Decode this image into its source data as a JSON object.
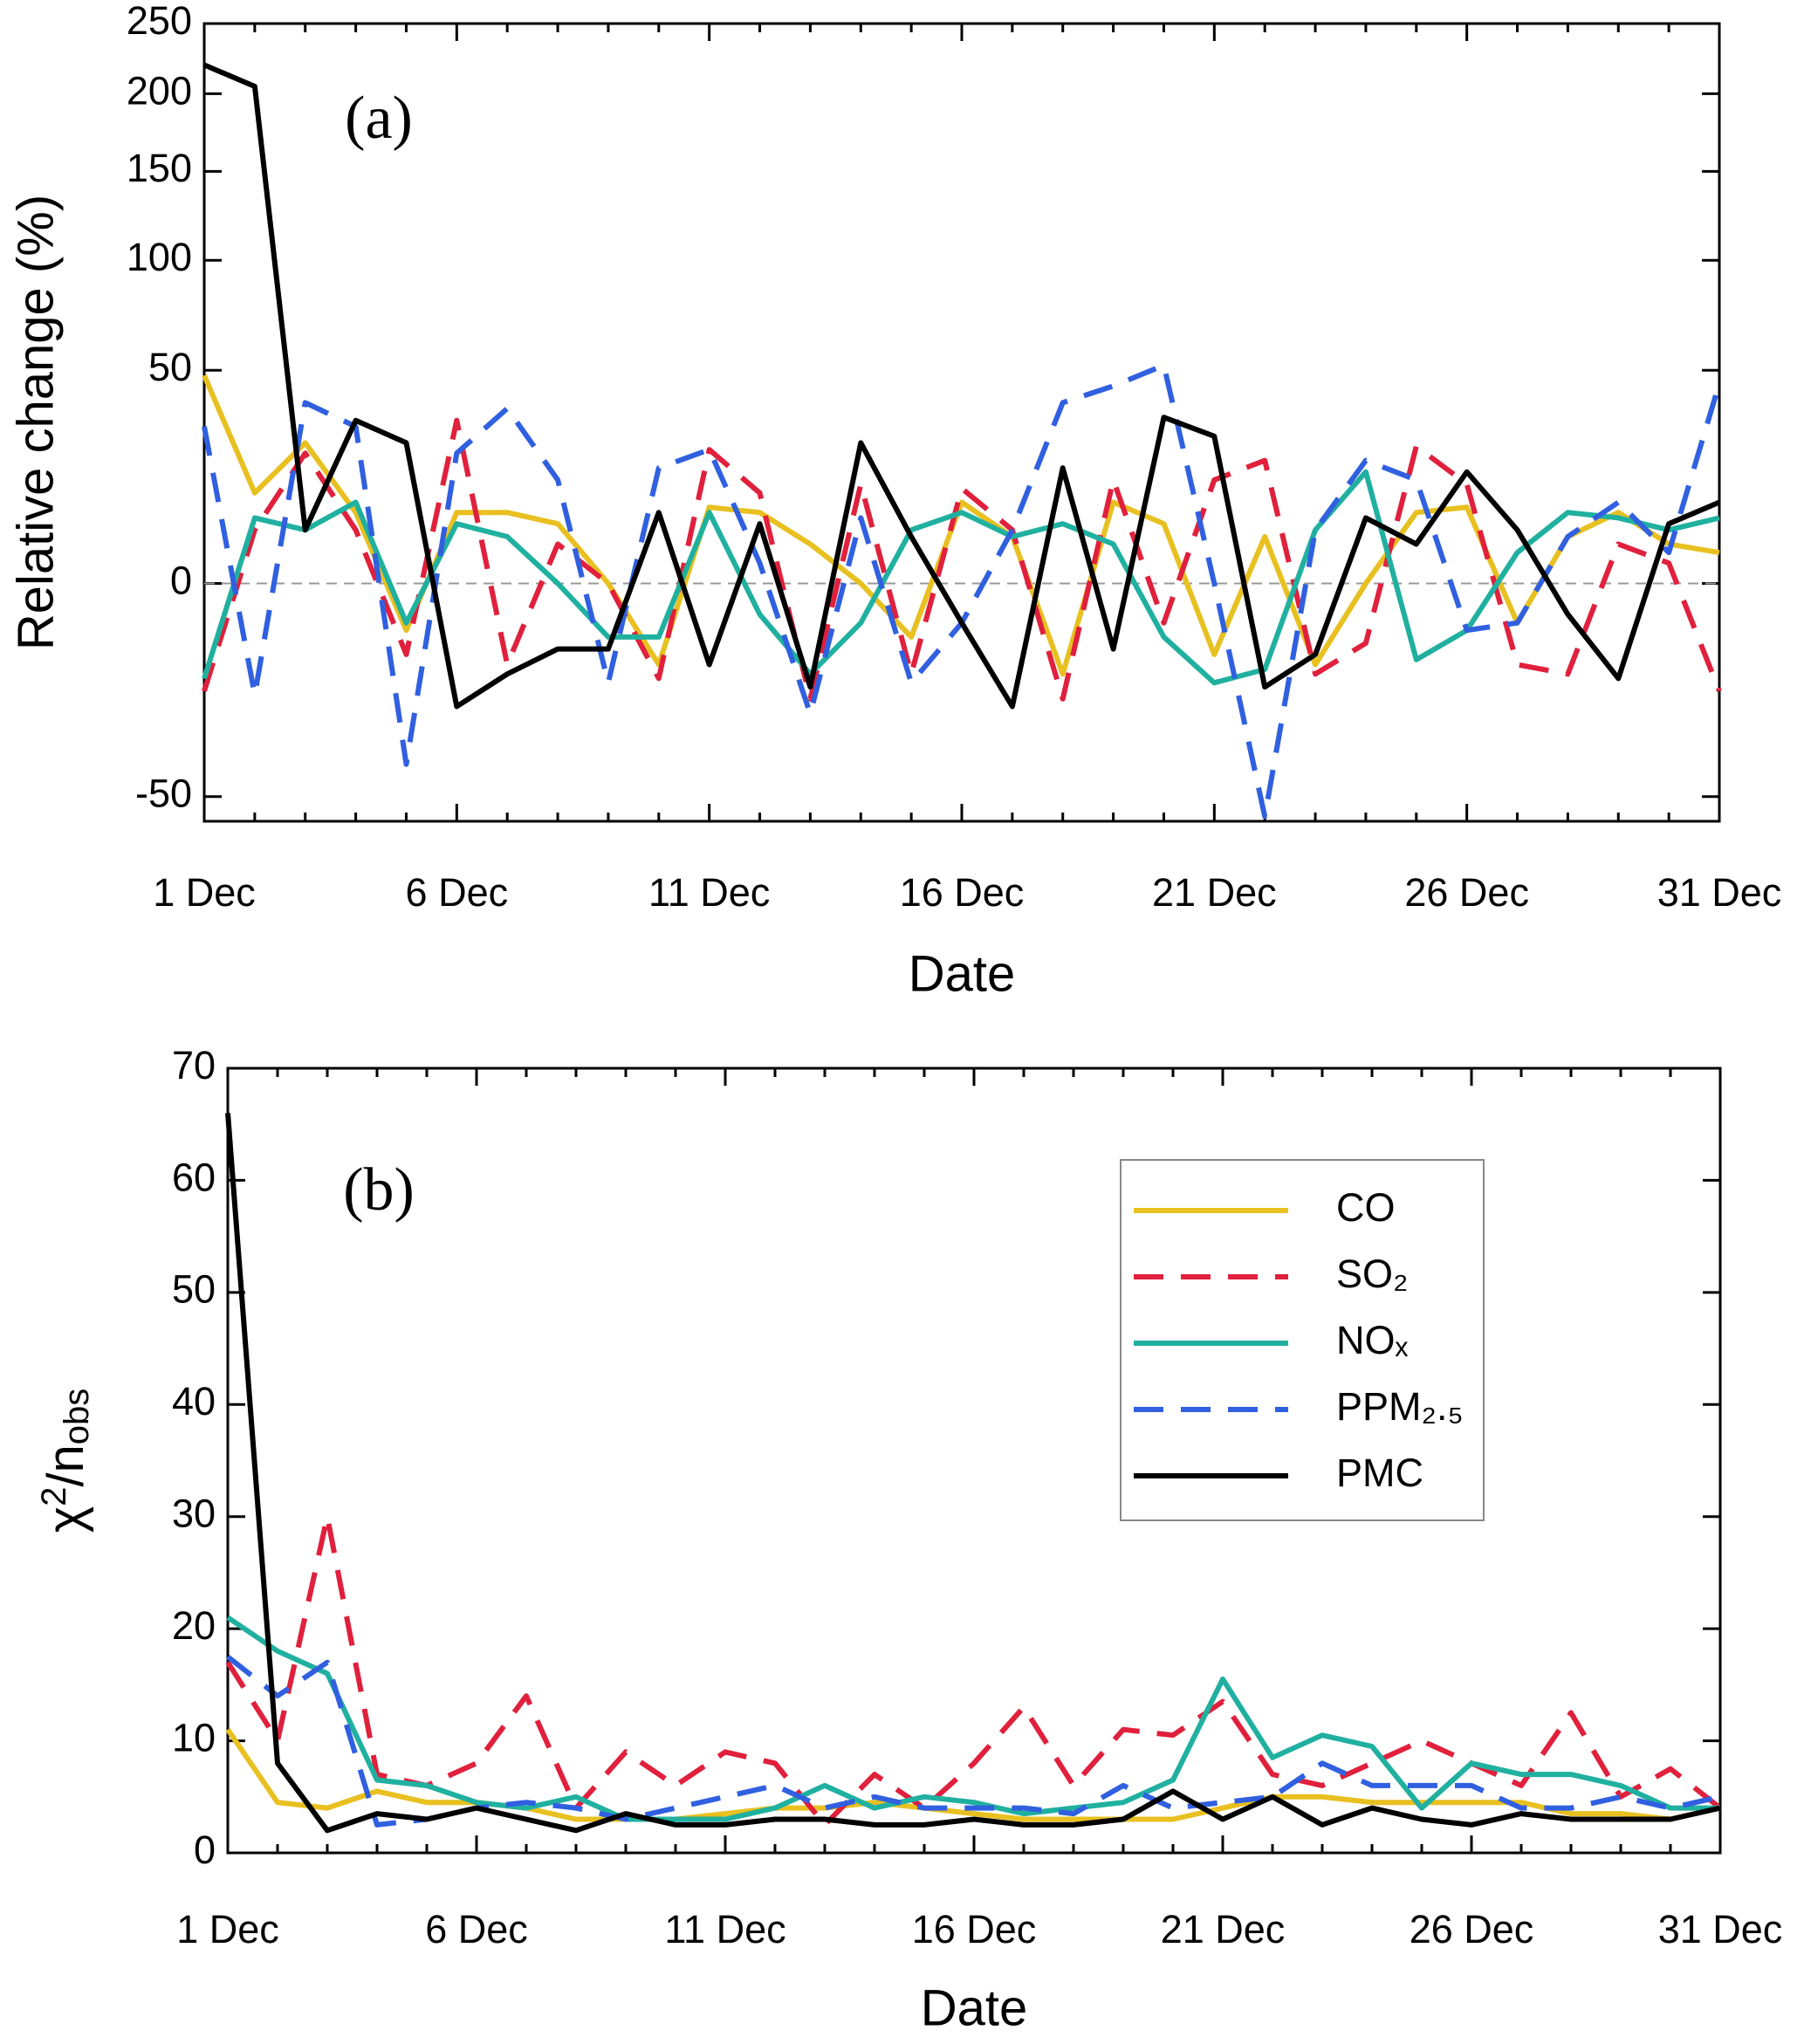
{
  "chart_data": [
    {
      "type": "line",
      "annotation": "(a)",
      "xlabel": "Date",
      "ylabel": "Relative change (%)",
      "categories": [
        "1 Dec",
        null,
        null,
        null,
        null,
        "6 Dec",
        null,
        null,
        null,
        null,
        "11 Dec",
        null,
        null,
        null,
        null,
        "16 Dec",
        null,
        null,
        null,
        null,
        "21 Dec",
        null,
        null,
        null,
        null,
        "26 Dec",
        null,
        null,
        null,
        null,
        "31 Dec"
      ],
      "yscale": "power",
      "ylim": [
        -60,
        250
      ],
      "yticks": [
        -50,
        0,
        50,
        100,
        150,
        200,
        250
      ],
      "hline": 0,
      "series": [
        {
          "name": "CO",
          "color": "#e8c020",
          "dash": false,
          "values": [
            48,
            12,
            25,
            8,
            -4,
            8,
            8,
            6,
            0,
            -10,
            9,
            8,
            3,
            0,
            -5,
            10,
            4,
            -12,
            10,
            6,
            -8,
            4,
            -10,
            0,
            8,
            9,
            -3,
            4,
            8,
            3,
            2
          ]
        },
        {
          "name": "SO₂",
          "color": "#e0203c",
          "dash": true,
          "values": [
            -16,
            5,
            22,
            5,
            -8,
            32,
            -10,
            3,
            0,
            -13,
            23,
            12,
            -18,
            14,
            -12,
            13,
            5,
            -18,
            15,
            -3,
            15,
            20,
            -12,
            -6,
            24,
            14,
            -10,
            -12,
            3,
            1,
            -16
          ]
        },
        {
          "name": "NOₓ",
          "color": "#20b0a0",
          "dash": false,
          "values": [
            -13,
            7,
            5,
            10,
            -3,
            6,
            4,
            0,
            -5,
            -5,
            8,
            -2,
            -12,
            -3,
            5,
            8,
            4,
            6,
            3,
            -5,
            -14,
            -11,
            5,
            17,
            -9,
            -4,
            2,
            8,
            7,
            5,
            7
          ]
        },
        {
          "name": "PPM₂.₅",
          "color": "#3060e0",
          "dash": true,
          "values": [
            30,
            -17,
            38,
            30,
            -38,
            22,
            36,
            15,
            -14,
            18,
            23,
            1,
            -22,
            7,
            -14,
            -3,
            5,
            38,
            44,
            52,
            0,
            -58,
            5,
            20,
            15,
            -4,
            -3,
            4,
            10,
            2,
            45
          ]
        },
        {
          "name": "PMC",
          "color": "#000000",
          "dash": false,
          "values": [
            220,
            205,
            5,
            32,
            25,
            -20,
            -12,
            -7,
            -7,
            8,
            -10,
            6,
            -15,
            25,
            4,
            -3,
            -20,
            18,
            -7,
            33,
            27,
            -15,
            -8,
            7,
            3,
            17,
            5,
            -2,
            -13,
            6,
            10
          ]
        }
      ]
    },
    {
      "type": "line",
      "annotation": "(b)",
      "xlabel": "Date",
      "ylabel": [
        "χ",
        "2",
        "/n",
        "obs"
      ],
      "categories": [
        "1 Dec",
        null,
        null,
        null,
        null,
        "6 Dec",
        null,
        null,
        null,
        null,
        "11 Dec",
        null,
        null,
        null,
        null,
        "16 Dec",
        null,
        null,
        null,
        null,
        "21 Dec",
        null,
        null,
        null,
        null,
        "26 Dec",
        null,
        null,
        null,
        null,
        "31 Dec"
      ],
      "ylim": [
        0,
        70
      ],
      "yticks": [
        0,
        10,
        20,
        30,
        40,
        50,
        60,
        70
      ],
      "legend": "upper right",
      "series": [
        {
          "name": "CO",
          "color": "#e8c020",
          "dash": false,
          "values": [
            11,
            4.5,
            4,
            5.5,
            4.5,
            4.5,
            4,
            3,
            3,
            3,
            3.5,
            4,
            4,
            4.5,
            4,
            3.5,
            3,
            3,
            3,
            3,
            4,
            5,
            5,
            4.5,
            4.5,
            4.5,
            4.5,
            3.5,
            3.5,
            3,
            4
          ]
        },
        {
          "name": "SO₂",
          "color": "#e0203c",
          "dash": true,
          "values": [
            17,
            10,
            30,
            7,
            6,
            8,
            14,
            4,
            9,
            6,
            9,
            8,
            2.5,
            7,
            4,
            8,
            13,
            6,
            11,
            10.5,
            13.5,
            7,
            6,
            8,
            10,
            8,
            6,
            12.5,
            5,
            7.5,
            4
          ]
        },
        {
          "name": "NOₓ",
          "color": "#20b0a0",
          "dash": false,
          "values": [
            21,
            18,
            16,
            6.5,
            6,
            4.5,
            4,
            5,
            3,
            3,
            3,
            4,
            6,
            4,
            5,
            4.5,
            3.5,
            4,
            4.5,
            6.5,
            15.5,
            8.5,
            10.5,
            9.5,
            4,
            8,
            7,
            7,
            6,
            4,
            4
          ]
        },
        {
          "name": "PPM₂.₅",
          "color": "#3060e0",
          "dash": true,
          "values": [
            17.5,
            14,
            17,
            2.5,
            3,
            4,
            4.5,
            4,
            3,
            4,
            5,
            6,
            4,
            5,
            4,
            4,
            4,
            3.5,
            6,
            4,
            4.5,
            5,
            8,
            6,
            6,
            6,
            4,
            4,
            5,
            4,
            5
          ]
        },
        {
          "name": "PMC",
          "color": "#000000",
          "dash": false,
          "values": [
            66,
            8,
            2,
            3.5,
            3,
            4,
            3,
            2,
            3.5,
            2.5,
            2.5,
            3,
            3,
            2.5,
            2.5,
            3,
            2.5,
            2.5,
            3,
            5.5,
            3,
            5,
            2.5,
            4,
            3,
            2.5,
            3.5,
            3,
            3,
            3,
            4
          ]
        }
      ]
    }
  ]
}
